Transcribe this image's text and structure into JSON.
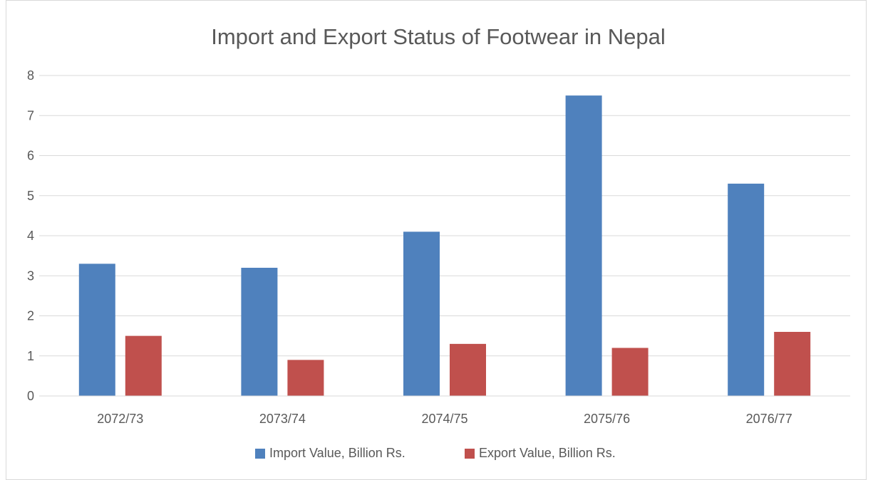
{
  "chart_data": {
    "type": "bar",
    "title": "Import and Export Status of Footwear in Nepal",
    "xlabel": "",
    "ylabel": "",
    "categories": [
      "2072/73",
      "2073/74",
      "2074/75",
      "2075/76",
      "2076/77"
    ],
    "series": [
      {
        "name": "Import Value, Billion Rs.",
        "values": [
          3.3,
          3.2,
          4.1,
          7.5,
          5.3
        ],
        "color": "#4f81bd"
      },
      {
        "name": "Export Value, Billion Rs.",
        "values": [
          1.5,
          0.9,
          1.3,
          1.2,
          1.6
        ],
        "color": "#c0504d"
      }
    ],
    "ylim": [
      0,
      8
    ],
    "yticks": [
      0,
      1,
      2,
      3,
      4,
      5,
      6,
      7,
      8
    ],
    "grid": true,
    "legend_position": "bottom"
  }
}
